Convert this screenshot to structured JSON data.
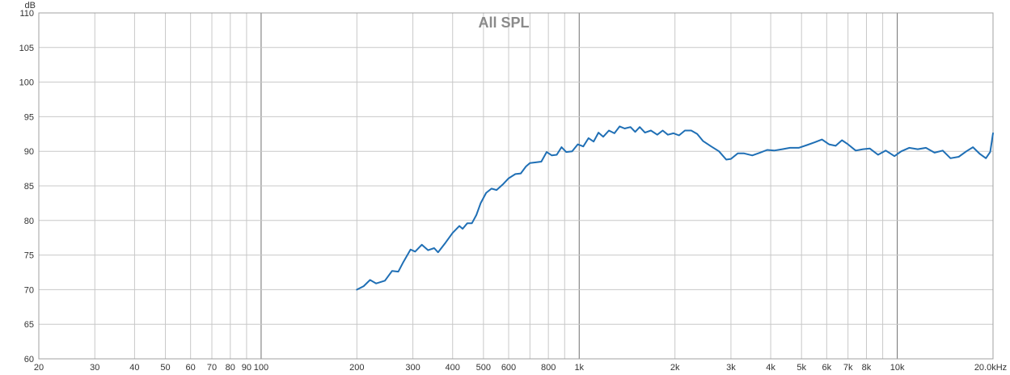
{
  "chart_data": {
    "type": "line",
    "title": "All SPL",
    "y_unit_label": "dB",
    "x_scale": "log",
    "xlim": [
      20,
      20000
    ],
    "ylim": [
      60,
      110
    ],
    "grid": true,
    "x_major_ticks": [
      100,
      1000,
      10000
    ],
    "x_tick_labels": [
      {
        "value": 20,
        "label": "20"
      },
      {
        "value": 30,
        "label": "30"
      },
      {
        "value": 40,
        "label": "40"
      },
      {
        "value": 50,
        "label": "50"
      },
      {
        "value": 60,
        "label": "60"
      },
      {
        "value": 70,
        "label": "70"
      },
      {
        "value": 80,
        "label": "80"
      },
      {
        "value": 90,
        "label": "90"
      },
      {
        "value": 100,
        "label": "100"
      },
      {
        "value": 200,
        "label": "200"
      },
      {
        "value": 300,
        "label": "300"
      },
      {
        "value": 400,
        "label": "400"
      },
      {
        "value": 500,
        "label": "500"
      },
      {
        "value": 600,
        "label": "600"
      },
      {
        "value": 800,
        "label": "800"
      },
      {
        "value": 1000,
        "label": "1k"
      },
      {
        "value": 2000,
        "label": "2k"
      },
      {
        "value": 3000,
        "label": "3k"
      },
      {
        "value": 4000,
        "label": "4k"
      },
      {
        "value": 5000,
        "label": "5k"
      },
      {
        "value": 6000,
        "label": "6k"
      },
      {
        "value": 7000,
        "label": "7k"
      },
      {
        "value": 8000,
        "label": "8k"
      },
      {
        "value": 10000,
        "label": "10k"
      },
      {
        "value": 20000,
        "label": "20.0kHz"
      }
    ],
    "y_ticks": [
      60,
      65,
      70,
      75,
      80,
      85,
      90,
      95,
      100,
      105,
      110
    ],
    "series": [
      {
        "color": "#1f6fb5",
        "points": [
          [
            200,
            70.0
          ],
          [
            210,
            70.5
          ],
          [
            220,
            71.4
          ],
          [
            230,
            70.9
          ],
          [
            245,
            71.3
          ],
          [
            258,
            72.7
          ],
          [
            270,
            72.6
          ],
          [
            280,
            74.0
          ],
          [
            295,
            75.8
          ],
          [
            305,
            75.5
          ],
          [
            320,
            76.5
          ],
          [
            335,
            75.7
          ],
          [
            350,
            76.0
          ],
          [
            360,
            75.4
          ],
          [
            380,
            76.8
          ],
          [
            400,
            78.2
          ],
          [
            420,
            79.2
          ],
          [
            430,
            78.8
          ],
          [
            445,
            79.6
          ],
          [
            460,
            79.6
          ],
          [
            475,
            80.8
          ],
          [
            490,
            82.5
          ],
          [
            510,
            84.0
          ],
          [
            530,
            84.6
          ],
          [
            550,
            84.4
          ],
          [
            575,
            85.2
          ],
          [
            600,
            86.1
          ],
          [
            630,
            86.7
          ],
          [
            655,
            86.8
          ],
          [
            680,
            87.8
          ],
          [
            700,
            88.3
          ],
          [
            730,
            88.4
          ],
          [
            760,
            88.5
          ],
          [
            790,
            89.9
          ],
          [
            820,
            89.4
          ],
          [
            850,
            89.5
          ],
          [
            880,
            90.6
          ],
          [
            910,
            89.9
          ],
          [
            950,
            90.0
          ],
          [
            990,
            91.0
          ],
          [
            1030,
            90.7
          ],
          [
            1070,
            91.9
          ],
          [
            1110,
            91.4
          ],
          [
            1150,
            92.7
          ],
          [
            1190,
            92.1
          ],
          [
            1240,
            93.0
          ],
          [
            1290,
            92.6
          ],
          [
            1340,
            93.6
          ],
          [
            1390,
            93.3
          ],
          [
            1450,
            93.5
          ],
          [
            1500,
            92.8
          ],
          [
            1550,
            93.5
          ],
          [
            1610,
            92.7
          ],
          [
            1680,
            93.0
          ],
          [
            1760,
            92.4
          ],
          [
            1830,
            93.0
          ],
          [
            1900,
            92.4
          ],
          [
            1980,
            92.6
          ],
          [
            2060,
            92.3
          ],
          [
            2150,
            93.0
          ],
          [
            2250,
            93.0
          ],
          [
            2350,
            92.5
          ],
          [
            2450,
            91.5
          ],
          [
            2600,
            90.7
          ],
          [
            2750,
            90.0
          ],
          [
            2900,
            88.8
          ],
          [
            3000,
            88.9
          ],
          [
            3150,
            89.7
          ],
          [
            3300,
            89.7
          ],
          [
            3500,
            89.4
          ],
          [
            3700,
            89.8
          ],
          [
            3900,
            90.2
          ],
          [
            4100,
            90.1
          ],
          [
            4350,
            90.3
          ],
          [
            4600,
            90.5
          ],
          [
            4900,
            90.5
          ],
          [
            5200,
            90.9
          ],
          [
            5500,
            91.3
          ],
          [
            5800,
            91.7
          ],
          [
            6100,
            91.0
          ],
          [
            6400,
            90.8
          ],
          [
            6700,
            91.6
          ],
          [
            7000,
            91.0
          ],
          [
            7400,
            90.1
          ],
          [
            7800,
            90.3
          ],
          [
            8200,
            90.4
          ],
          [
            8700,
            89.5
          ],
          [
            9200,
            90.1
          ],
          [
            9800,
            89.3
          ],
          [
            10300,
            90.0
          ],
          [
            10900,
            90.5
          ],
          [
            11600,
            90.3
          ],
          [
            12300,
            90.5
          ],
          [
            13100,
            89.8
          ],
          [
            13900,
            90.1
          ],
          [
            14700,
            89.0
          ],
          [
            15600,
            89.2
          ],
          [
            16500,
            90.0
          ],
          [
            17300,
            90.6
          ],
          [
            18200,
            89.6
          ],
          [
            19000,
            89.0
          ],
          [
            19600,
            89.9
          ],
          [
            20000,
            92.6
          ]
        ]
      }
    ]
  }
}
